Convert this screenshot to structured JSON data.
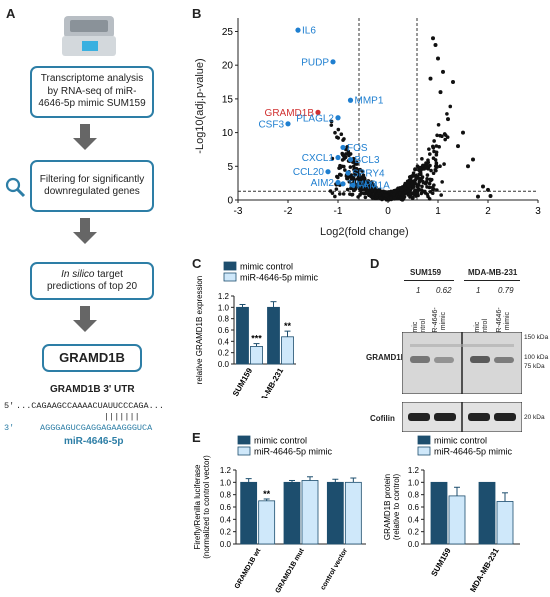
{
  "panelA": {
    "letter": "A",
    "box1": "Transcriptome analysis by RNA-seq of miR-4646-5p mimic SUM159",
    "box2": "Filtering for significantly downregulated genes",
    "box3_italic": "In silico",
    "box3_rest": " target predictions of top 20",
    "box4": "GRAMD1B",
    "utr_title": "GRAMD1B 3' UTR",
    "utr_5_label": "5'",
    "utr_5_seq": "...CAGAAGCCAAAACUAUUCCCAGA...",
    "utr_pairs": "|||||||",
    "utr_3_label": "3'",
    "utr_3_seq": "AGGGAGUCGAGGAGAAGGGUCA",
    "mirna_label": "miR-4646-5p",
    "accent_color": "#2d7ea6"
  },
  "panelB": {
    "letter": "B",
    "xlabel": "Log2(fold change)",
    "ylabel": "-Log10(adj.p-value)",
    "chart_data": {
      "type": "scatter",
      "xlim": [
        -3,
        3
      ],
      "ylim": [
        0,
        27
      ],
      "xticks": [
        -3,
        -2,
        -1,
        0,
        1,
        2,
        3
      ],
      "yticks": [
        0,
        5,
        10,
        15,
        20,
        25
      ],
      "labeled_points": [
        {
          "label": "IL6",
          "x": -1.8,
          "y": 25.2,
          "color": "#1f7fd0"
        },
        {
          "label": "PUDP",
          "x": -1.1,
          "y": 20.5,
          "color": "#1f7fd0"
        },
        {
          "label": "MMP1",
          "x": -0.75,
          "y": 14.8,
          "color": "#1f7fd0"
        },
        {
          "label": "GRAMD1B",
          "x": -1.4,
          "y": 13.0,
          "color": "#d03030"
        },
        {
          "label": "PLAGL2",
          "x": -1.0,
          "y": 12.2,
          "color": "#1f7fd0"
        },
        {
          "label": "CSF3",
          "x": -2.0,
          "y": 11.3,
          "color": "#1f7fd0"
        },
        {
          "label": "FOS",
          "x": -0.9,
          "y": 7.8,
          "color": "#1f7fd0"
        },
        {
          "label": "CXCL1",
          "x": -1.0,
          "y": 6.3,
          "color": "#1f7fd0"
        },
        {
          "label": "BCL3",
          "x": -0.75,
          "y": 6.0,
          "color": "#1f7fd0"
        },
        {
          "label": "CCL20",
          "x": -1.2,
          "y": 4.2,
          "color": "#1f7fd0"
        },
        {
          "label": "SPRY4",
          "x": -0.8,
          "y": 4.0,
          "color": "#1f7fd0"
        },
        {
          "label": "AIM2",
          "x": -1.0,
          "y": 2.6,
          "color": "#1f7fd0"
        },
        {
          "label": "TIMP3",
          "x": -0.9,
          "y": 2.4,
          "color": "#1f7fd0"
        },
        {
          "label": "FAM1A",
          "x": -0.7,
          "y": 2.2,
          "color": "#1f7fd0"
        }
      ],
      "vlines": [
        -0.58,
        0.58
      ],
      "hline": 1.3
    }
  },
  "panelC": {
    "letter": "C",
    "legend": [
      "mimic control",
      "miR-4646-5p mimic"
    ],
    "ylabel": "relative GRAMD1B expression",
    "chart_data": {
      "type": "bar",
      "categories": [
        "SUM159",
        "MDA-MB-231"
      ],
      "series": [
        {
          "name": "mimic control",
          "values": [
            1.0,
            1.0
          ],
          "errors": [
            0.05,
            0.1
          ],
          "color": "#1d4e6e"
        },
        {
          "name": "miR-4646-5p mimic",
          "values": [
            0.31,
            0.48
          ],
          "errors": [
            0.05,
            0.1
          ],
          "color": "#cfe8fa"
        }
      ],
      "significance": [
        "***",
        "**"
      ],
      "ylim": [
        0,
        1.2
      ],
      "yticks": [
        "0.0",
        "0.2",
        "0.4",
        "0.6",
        "0.8",
        "1.0",
        "1.2"
      ]
    }
  },
  "panelD": {
    "letter": "D",
    "cell_lines": [
      "SUM159",
      "MDA-MB-231"
    ],
    "quant": [
      "1",
      "0.62",
      "1",
      "0.79"
    ],
    "lanes": [
      "mimic control",
      "miR-4646-5p mimic",
      "mimic control",
      "miR-4646-5p mimic"
    ],
    "blot1_label": "GRAMD1B",
    "blot2_label": "Cofilin",
    "markers_top": [
      "150 kDa",
      "100 kDa",
      "75 kDa"
    ],
    "marker_bottom": "20 kDa"
  },
  "panelE": {
    "letter": "E",
    "legend": [
      "mimic control",
      "miR-4646-5p mimic"
    ],
    "left_ylabel_1": "Firefly/Renilla luciferase",
    "left_ylabel_2": "(normalized to control vector)",
    "right_ylabel_1": "GRAMD1B protein",
    "right_ylabel_2": "(relative to control)",
    "chart_data": [
      {
        "type": "bar",
        "categories": [
          "GRAMD1B wt",
          "GRAMD1B mut",
          "control vector"
        ],
        "series": [
          {
            "name": "mimic control",
            "values": [
              1.0,
              1.0,
              1.0
            ],
            "errors": [
              0.06,
              0.03,
              0.05
            ],
            "color": "#1d4e6e"
          },
          {
            "name": "miR-4646-5p mimic",
            "values": [
              0.7,
              1.03,
              1.0
            ],
            "errors": [
              0.03,
              0.06,
              0.07
            ],
            "color": "#cfe8fa"
          }
        ],
        "significance": [
          "**",
          "",
          ""
        ],
        "ylim": [
          0,
          1.2
        ],
        "yticks": [
          "0.0",
          "0.2",
          "0.4",
          "0.6",
          "0.8",
          "1.0",
          "1.2"
        ]
      },
      {
        "type": "bar",
        "categories": [
          "SUM159",
          "MDA-MB-231"
        ],
        "series": [
          {
            "name": "mimic control",
            "values": [
              1.0,
              1.0
            ],
            "errors": [
              0,
              0
            ],
            "color": "#1d4e6e"
          },
          {
            "name": "miR-4646-5p mimic",
            "values": [
              0.78,
              0.69
            ],
            "errors": [
              0.14,
              0.14
            ],
            "color": "#cfe8fa"
          }
        ],
        "ylim": [
          0,
          1.2
        ],
        "yticks": [
          "0.0",
          "0.2",
          "0.4",
          "0.6",
          "0.8",
          "1.0",
          "1.2"
        ]
      }
    ]
  }
}
